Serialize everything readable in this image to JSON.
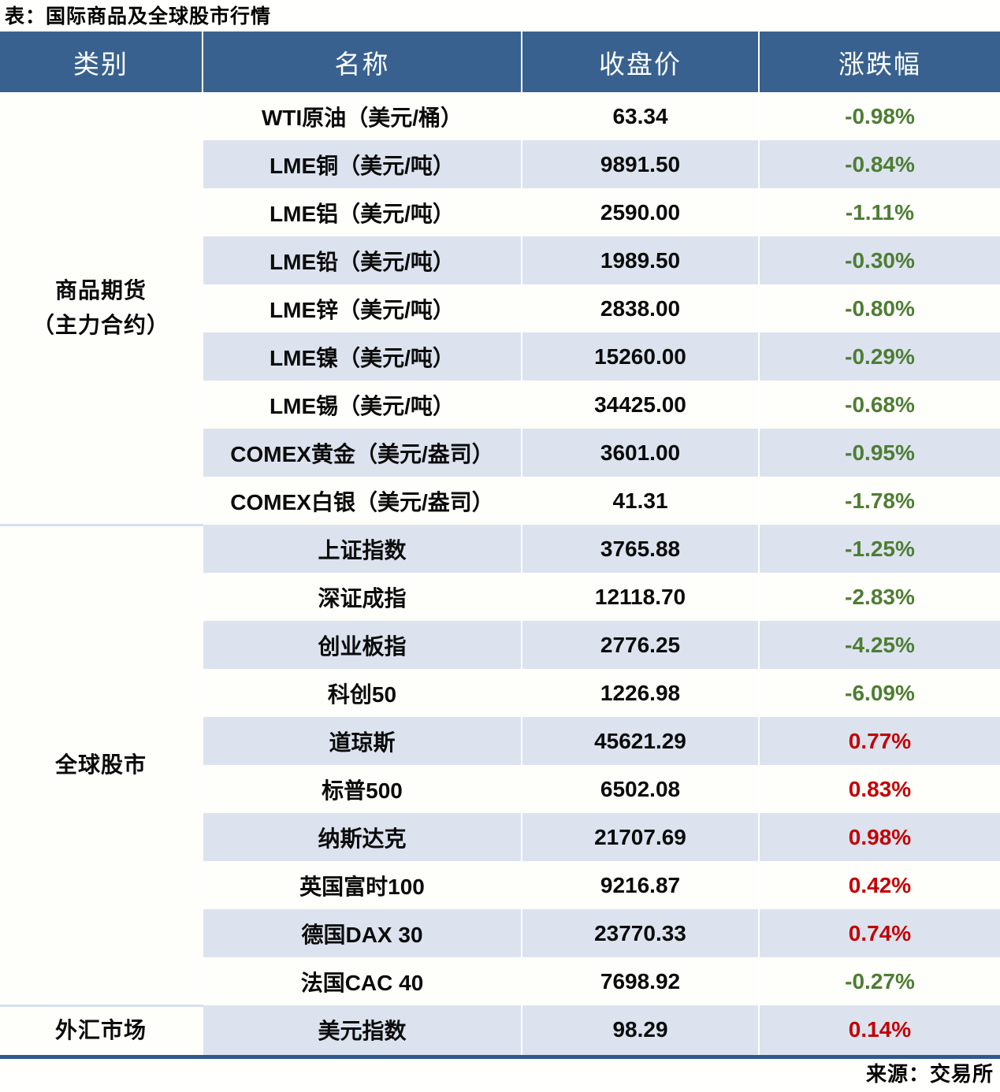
{
  "page": {
    "title": "表：国际商品及全球股市行情",
    "source": "来源：交易所"
  },
  "colors": {
    "header_bg": "#38618F",
    "alt_row_bg": "#DCE3EF",
    "plain_row_bg": "#FEFEFB",
    "bottom_border": "#2E5A8C",
    "group_divider": "#D6E0EF",
    "positive_red": "#C30000",
    "negative_green": "#4E7D33"
  },
  "table": {
    "columns": [
      "类别",
      "名称",
      "收盘价",
      "涨跌幅"
    ],
    "groups": [
      {
        "category_lines": [
          "商品期货",
          "（主力合约）"
        ],
        "rows": [
          {
            "name": "WTI原油（美元/桶）",
            "close": "63.34",
            "change": "-0.98%",
            "direction": "down"
          },
          {
            "name": "LME铜（美元/吨）",
            "close": "9891.50",
            "change": "-0.84%",
            "direction": "down"
          },
          {
            "name": "LME铝（美元/吨）",
            "close": "2590.00",
            "change": "-1.11%",
            "direction": "down"
          },
          {
            "name": "LME铅（美元/吨）",
            "close": "1989.50",
            "change": "-0.30%",
            "direction": "down"
          },
          {
            "name": "LME锌（美元/吨）",
            "close": "2838.00",
            "change": "-0.80%",
            "direction": "down"
          },
          {
            "name": "LME镍（美元/吨）",
            "close": "15260.00",
            "change": "-0.29%",
            "direction": "down"
          },
          {
            "name": "LME锡（美元/吨）",
            "close": "34425.00",
            "change": "-0.68%",
            "direction": "down"
          },
          {
            "name": "COMEX黄金（美元/盎司）",
            "close": "3601.00",
            "change": "-0.95%",
            "direction": "down"
          },
          {
            "name": "COMEX白银（美元/盎司）",
            "close": "41.31",
            "change": "-1.78%",
            "direction": "down"
          }
        ]
      },
      {
        "category_lines": [
          "全球股市"
        ],
        "rows": [
          {
            "name": "上证指数",
            "close": "3765.88",
            "change": "-1.25%",
            "direction": "down"
          },
          {
            "name": "深证成指",
            "close": "12118.70",
            "change": "-2.83%",
            "direction": "down"
          },
          {
            "name": "创业板指",
            "close": "2776.25",
            "change": "-4.25%",
            "direction": "down"
          },
          {
            "name": "科创50",
            "close": "1226.98",
            "change": "-6.09%",
            "direction": "down"
          },
          {
            "name": "道琼斯",
            "close": "45621.29",
            "change": "0.77%",
            "direction": "up"
          },
          {
            "name": "标普500",
            "close": "6502.08",
            "change": "0.83%",
            "direction": "up"
          },
          {
            "name": "纳斯达克",
            "close": "21707.69",
            "change": "0.98%",
            "direction": "up"
          },
          {
            "name": "英国富时100",
            "close": "9216.87",
            "change": "0.42%",
            "direction": "up"
          },
          {
            "name": "德国DAX 30",
            "close": "23770.33",
            "change": "0.74%",
            "direction": "up"
          },
          {
            "name": "法国CAC 40",
            "close": "7698.92",
            "change": "-0.27%",
            "direction": "down"
          }
        ]
      },
      {
        "category_lines": [
          "外汇市场"
        ],
        "rows": [
          {
            "name": "美元指数",
            "close": "98.29",
            "change": "0.14%",
            "direction": "up"
          }
        ]
      }
    ]
  },
  "chart_data": {
    "type": "table",
    "title": "表：国际商品及全球股市行情",
    "source": "来源：交易所",
    "columns": [
      "类别",
      "名称",
      "收盘价",
      "涨跌幅"
    ],
    "rows": [
      [
        "商品期货（主力合约）",
        "WTI原油（美元/桶）",
        63.34,
        -0.98
      ],
      [
        "商品期货（主力合约）",
        "LME铜（美元/吨）",
        9891.5,
        -0.84
      ],
      [
        "商品期货（主力合约）",
        "LME铝（美元/吨）",
        2590.0,
        -1.11
      ],
      [
        "商品期货（主力合约）",
        "LME铅（美元/吨）",
        1989.5,
        -0.3
      ],
      [
        "商品期货（主力合约）",
        "LME锌（美元/吨）",
        2838.0,
        -0.8
      ],
      [
        "商品期货（主力合约）",
        "LME镍（美元/吨）",
        15260.0,
        -0.29
      ],
      [
        "商品期货（主力合约）",
        "LME锡（美元/吨）",
        34425.0,
        -0.68
      ],
      [
        "商品期货（主力合约）",
        "COMEX黄金（美元/盎司）",
        3601.0,
        -0.95
      ],
      [
        "商品期货（主力合约）",
        "COMEX白银（美元/盎司）",
        41.31,
        -1.78
      ],
      [
        "全球股市",
        "上证指数",
        3765.88,
        -1.25
      ],
      [
        "全球股市",
        "深证成指",
        12118.7,
        -2.83
      ],
      [
        "全球股市",
        "创业板指",
        2776.25,
        -4.25
      ],
      [
        "全球股市",
        "科创50",
        1226.98,
        -6.09
      ],
      [
        "全球股市",
        "道琼斯",
        45621.29,
        0.77
      ],
      [
        "全球股市",
        "标普500",
        6502.08,
        0.83
      ],
      [
        "全球股市",
        "纳斯达克",
        21707.69,
        0.98
      ],
      [
        "全球股市",
        "英国富时100",
        9216.87,
        0.42
      ],
      [
        "全球股市",
        "德国DAX 30",
        23770.33,
        0.74
      ],
      [
        "全球股市",
        "法国CAC 40",
        7698.92,
        -0.27
      ],
      [
        "外汇市场",
        "美元指数",
        98.29,
        0.14
      ]
    ],
    "change_unit": "percent",
    "color_convention": "red = up, green = down"
  }
}
